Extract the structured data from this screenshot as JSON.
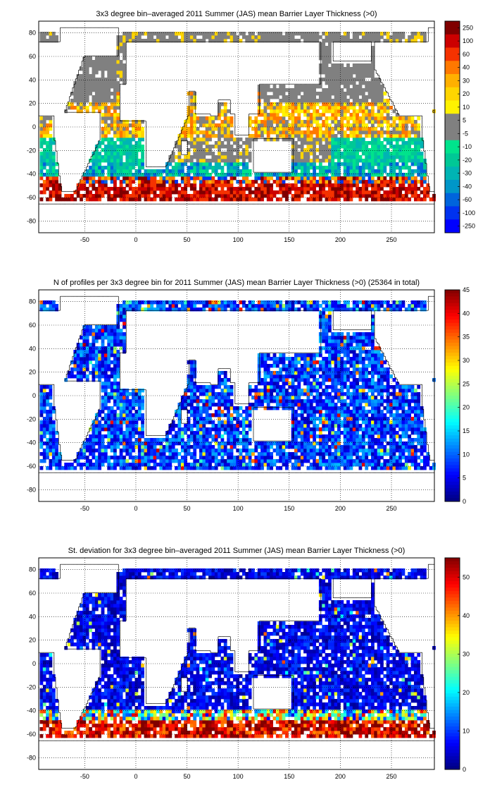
{
  "xticks": [
    "-50",
    "0",
    "50",
    "100",
    "150",
    "200",
    "250"
  ],
  "yticks": [
    "80",
    "60",
    "40",
    "20",
    "0",
    "-20",
    "-40",
    "-60",
    "-80"
  ],
  "panels": [
    {
      "title": "3x3 degree bin–averaged 2011 Summer (JAS) mean Barrier Layer Thickness (>0)",
      "colorbar_type": "discrete",
      "colorbar_labels": [
        "250",
        "100",
        "60",
        "40",
        "30",
        "20",
        "10",
        "5",
        "-5",
        "-10",
        "-20",
        "-30",
        "-40",
        "-60",
        "-100",
        "-250"
      ],
      "colorbar_colors": [
        "#800000",
        "#cc0000",
        "#f53200",
        "#ff7800",
        "#ffb000",
        "#ffd500",
        "#fff200",
        "#808080",
        "#808080",
        "#00e38c",
        "#00c896",
        "#00b4b4",
        "#0096c8",
        "#0064dc",
        "#0032f0",
        "#0000ff"
      ],
      "field": "blt"
    },
    {
      "title": "N of profiles per 3x3 degree bin for 2011 Summer (JAS) mean Barrier Layer Thickness (>0) (25364 in total)",
      "colorbar_type": "continuous",
      "colorbar_labels": [
        "45",
        "40",
        "35",
        "30",
        "25",
        "20",
        "15",
        "10",
        "5",
        "0"
      ],
      "colorbar_max": 45,
      "field": "count"
    },
    {
      "title": "St. deviation for 3x3 degree bin–averaged 2011 Summer (JAS) mean Barrier Layer Thickness (>0)",
      "colorbar_type": "continuous",
      "colorbar_labels": [
        "50",
        "40",
        "30",
        "20",
        "10",
        "0"
      ],
      "colorbar_max": 55,
      "field": "std"
    }
  ]
}
